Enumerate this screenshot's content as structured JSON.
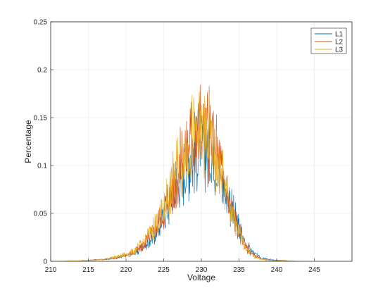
{
  "chart_data": {
    "type": "line",
    "title": "",
    "xlabel": "Voltage",
    "ylabel": "Percentage",
    "xlim": [
      210,
      250
    ],
    "ylim": [
      0,
      0.25
    ],
    "x_ticks": [
      "210",
      "215",
      "220",
      "225",
      "230",
      "235",
      "240",
      "245"
    ],
    "y_ticks": [
      "0",
      "0.05",
      "0.1",
      "0.15",
      "0.2",
      "0.25"
    ],
    "grid": true,
    "legend_position": "top-right",
    "colors": {
      "L1": "#0072BD",
      "L2": "#D95319",
      "L3": "#EDB120",
      "grid": "#e6e6e6",
      "axis": "#262626"
    },
    "series": [
      {
        "name": "L1",
        "x": [
          211,
          214,
          217,
          219,
          221,
          222,
          223,
          224,
          225,
          226,
          227,
          228,
          229,
          230,
          231,
          232,
          233,
          234,
          235,
          236,
          237,
          238,
          240,
          243
        ],
        "values": [
          0,
          0.0005,
          0.002,
          0.004,
          0.008,
          0.013,
          0.02,
          0.03,
          0.045,
          0.063,
          0.083,
          0.1,
          0.113,
          0.12,
          0.117,
          0.102,
          0.08,
          0.056,
          0.034,
          0.017,
          0.008,
          0.003,
          0.001,
          0
        ]
      },
      {
        "name": "L2",
        "x": [
          211,
          214,
          217,
          219,
          221,
          222,
          223,
          224,
          225,
          226,
          227,
          228,
          229,
          230,
          231,
          232,
          233,
          234,
          235,
          236,
          237,
          238,
          240,
          243
        ],
        "values": [
          0,
          0.0005,
          0.002,
          0.004,
          0.009,
          0.015,
          0.024,
          0.036,
          0.053,
          0.073,
          0.096,
          0.117,
          0.133,
          0.14,
          0.133,
          0.113,
          0.084,
          0.055,
          0.031,
          0.014,
          0.006,
          0.002,
          0.0005,
          0
        ]
      },
      {
        "name": "L3",
        "x": [
          211,
          214,
          217,
          219,
          221,
          222,
          223,
          224,
          225,
          226,
          227,
          228,
          229,
          230,
          231,
          232,
          233,
          234,
          235,
          236,
          237,
          238,
          240,
          243
        ],
        "values": [
          0,
          0.0005,
          0.002,
          0.005,
          0.01,
          0.017,
          0.027,
          0.04,
          0.057,
          0.077,
          0.099,
          0.117,
          0.13,
          0.134,
          0.127,
          0.107,
          0.079,
          0.052,
          0.029,
          0.013,
          0.005,
          0.002,
          0.0005,
          0
        ]
      }
    ]
  }
}
